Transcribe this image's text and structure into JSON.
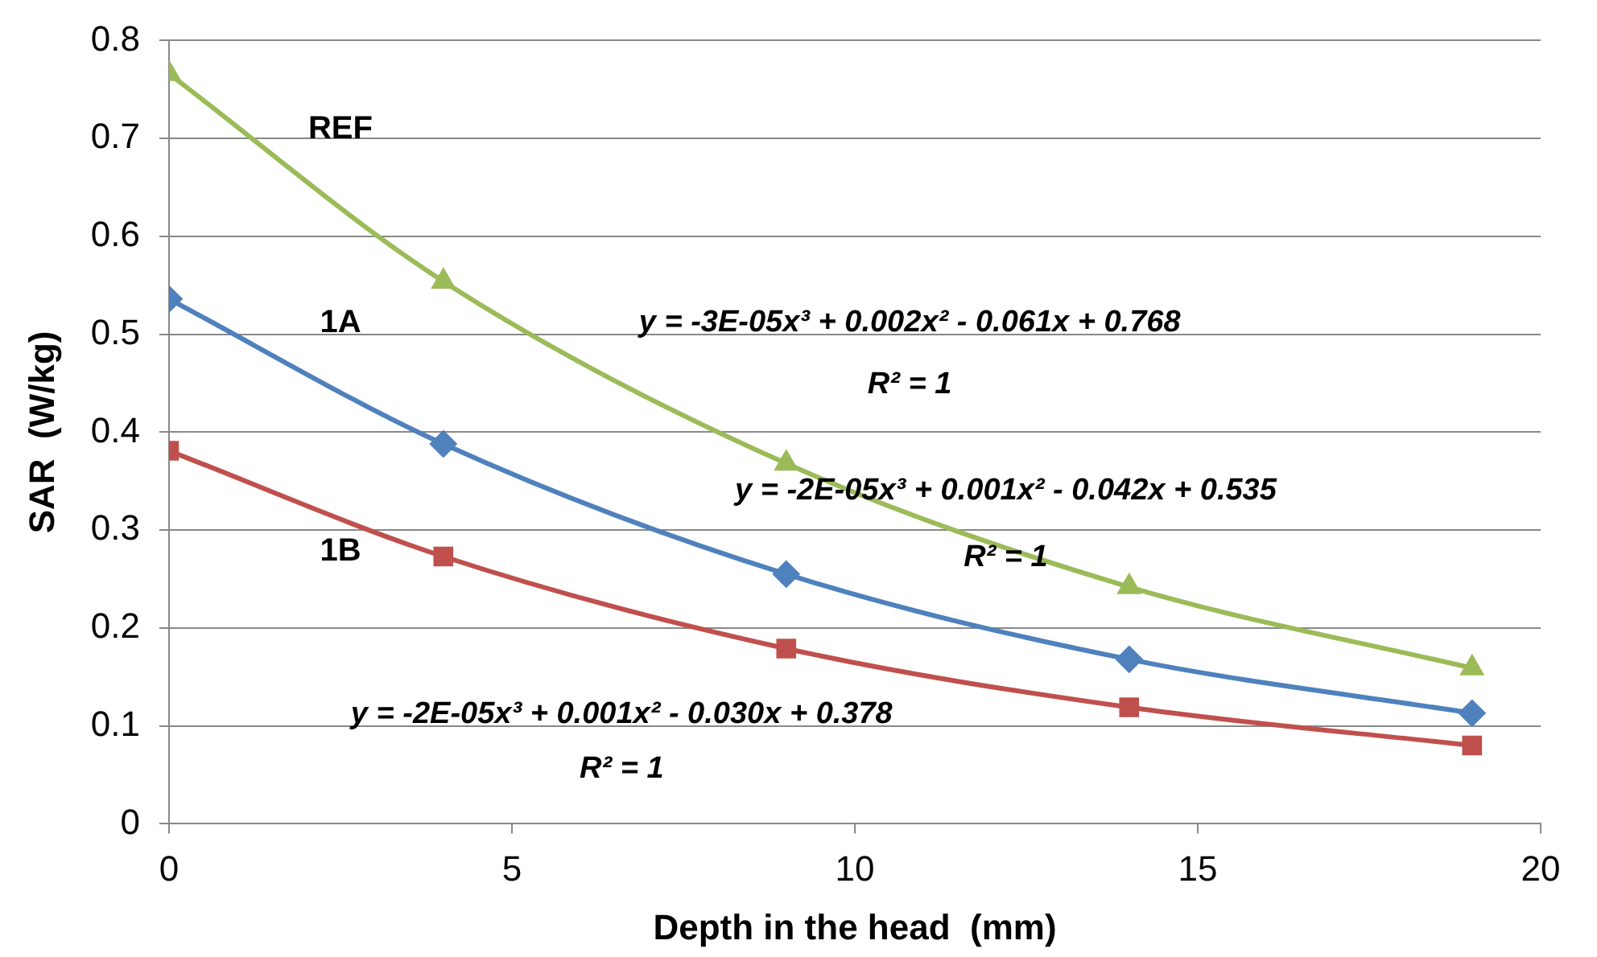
{
  "chart_data": {
    "type": "line",
    "xlabel": "Depth in the head  (mm)",
    "ylabel": "SAR  (W/kg)",
    "x": [
      0,
      4,
      9,
      14,
      19
    ],
    "series": [
      {
        "name": "REF",
        "color": "#9bbb59",
        "marker": "triangle",
        "values": [
          0.766,
          0.554,
          0.368,
          0.242,
          0.159
        ]
      },
      {
        "name": "1A",
        "color": "#4f81bd",
        "marker": "diamond",
        "values": [
          0.536,
          0.388,
          0.255,
          0.168,
          0.113
        ]
      },
      {
        "name": "1B",
        "color": "#c0504d",
        "marker": "square",
        "values": [
          0.381,
          0.273,
          0.179,
          0.119,
          0.08
        ]
      }
    ],
    "xlim": [
      0,
      20
    ],
    "xticks": [
      0,
      5,
      10,
      15,
      20
    ],
    "ylim": [
      0,
      0.8
    ],
    "yticks": [
      0,
      0.1,
      0.2,
      0.3,
      0.4,
      0.5,
      0.6,
      0.7,
      0.8
    ],
    "grid": "y",
    "legend": false,
    "line_style": "solid",
    "annotations": [
      "y = -3E-05x³ + 0.002x² - 0.061x + 0.768",
      "R² = 1",
      "y = -2E-05x³ + 0.001x² - 0.042x + 0.535",
      "R² = 1",
      "y = -2E-05x³ + 0.001x² - 0.030x + 0.378",
      "R² = 1"
    ]
  }
}
